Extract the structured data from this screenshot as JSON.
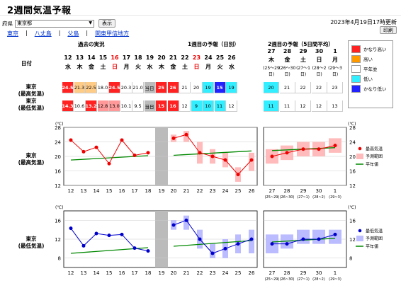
{
  "title": "2週間気温予報",
  "pref_label": "府県",
  "pref_value": "東京都",
  "show_button": "表示",
  "updated": "2023年4月19日17時更新",
  "print_button": "印刷",
  "links": [
    "東京",
    "八丈島",
    "父島",
    "関東甲信地方"
  ],
  "section_past": "過去の実況",
  "section_week1": "1週目の予報（日別）",
  "section_week2": "2週目の予報（5日間平均）",
  "date_label": "日付",
  "days": [
    {
      "d": "12",
      "w": "水",
      "color": "#000"
    },
    {
      "d": "13",
      "w": "木",
      "color": "#000"
    },
    {
      "d": "14",
      "w": "金",
      "color": "#000"
    },
    {
      "d": "15",
      "w": "土",
      "color": "#000"
    },
    {
      "d": "16",
      "w": "日",
      "color": "#e00"
    },
    {
      "d": "17",
      "w": "月",
      "color": "#000"
    },
    {
      "d": "18",
      "w": "火",
      "color": "#000"
    },
    {
      "d": "19",
      "w": "水",
      "color": "#000"
    },
    {
      "d": "20",
      "w": "木",
      "color": "#000"
    },
    {
      "d": "21",
      "w": "金",
      "color": "#000"
    },
    {
      "d": "22",
      "w": "土",
      "color": "#000"
    },
    {
      "d": "23",
      "w": "日",
      "color": "#e00"
    },
    {
      "d": "24",
      "w": "月",
      "color": "#000"
    },
    {
      "d": "25",
      "w": "火",
      "color": "#000"
    },
    {
      "d": "26",
      "w": "水",
      "color": "#000"
    }
  ],
  "week2_days": [
    {
      "d": "27",
      "w": "木",
      "r": "(25〜29日)"
    },
    {
      "d": "28",
      "w": "金",
      "r": "(26〜30日)"
    },
    {
      "d": "29",
      "w": "土",
      "r": "(27〜1日)"
    },
    {
      "d": "30",
      "w": "日",
      "r": "(28〜2日)"
    },
    {
      "d": "1",
      "w": "月",
      "r": "(29〜3日)"
    }
  ],
  "row_high_label": [
    "東京",
    "(最高気温)"
  ],
  "row_low_label": [
    "東京",
    "(最低気温)"
  ],
  "high_cells": [
    {
      "v": "24.5",
      "c": "#f22",
      "t": "#fff"
    },
    {
      "v": "21.3",
      "c": "#fc8",
      "t": "#000"
    },
    {
      "v": "22.5",
      "c": "#fc8",
      "t": "#000"
    },
    {
      "v": "18.0",
      "c": "#fff",
      "t": "#000"
    },
    {
      "v": "24.5",
      "c": "#f22",
      "t": "#fff"
    },
    {
      "v": "20.3",
      "c": "#fff",
      "t": "#000"
    },
    {
      "v": "21.0",
      "c": "#fff",
      "t": "#000"
    },
    {
      "v": "当日",
      "c": "#bbb",
      "t": "#000"
    },
    {
      "v": "25",
      "c": "#f22",
      "t": "#fff"
    },
    {
      "v": "26",
      "c": "#f22",
      "t": "#fff"
    },
    {
      "v": "21",
      "c": "#fff",
      "t": "#000"
    },
    {
      "v": "20",
      "c": "#fff",
      "t": "#000"
    },
    {
      "v": "19",
      "c": "#3ef",
      "t": "#000"
    },
    {
      "v": "15",
      "c": "#22f",
      "t": "#fff"
    },
    {
      "v": "19",
      "c": "#3ef",
      "t": "#000"
    }
  ],
  "low_cells": [
    {
      "v": "14.3",
      "c": "#f22",
      "t": "#fff"
    },
    {
      "v": "10.6",
      "c": "#fff",
      "t": "#000"
    },
    {
      "v": "13.2",
      "c": "#f22",
      "t": "#fff"
    },
    {
      "v": "12.8",
      "c": "#f99",
      "t": "#000"
    },
    {
      "v": "13.0",
      "c": "#f99",
      "t": "#000"
    },
    {
      "v": "10.1",
      "c": "#fff",
      "t": "#000"
    },
    {
      "v": "9.5",
      "c": "#fff",
      "t": "#000"
    },
    {
      "v": "当日",
      "c": "#bbb",
      "t": "#000"
    },
    {
      "v": "15",
      "c": "#f22",
      "t": "#fff"
    },
    {
      "v": "16",
      "c": "#f22",
      "t": "#fff"
    },
    {
      "v": "12",
      "c": "#fff",
      "t": "#000"
    },
    {
      "v": "9",
      "c": "#3ef",
      "t": "#000"
    },
    {
      "v": "10",
      "c": "#3ef",
      "t": "#000"
    },
    {
      "v": "11",
      "c": "#3ef",
      "t": "#000"
    },
    {
      "v": "12",
      "c": "#fff",
      "t": "#000"
    }
  ],
  "high_w2": [
    {
      "v": "20",
      "c": "#3ef"
    },
    {
      "v": "21",
      "c": "#fff"
    },
    {
      "v": "22",
      "c": "#fff"
    },
    {
      "v": "22",
      "c": "#fff"
    },
    {
      "v": "23",
      "c": "#fff"
    }
  ],
  "low_w2": [
    {
      "v": "11",
      "c": "#3ef"
    },
    {
      "v": "11",
      "c": "#fff"
    },
    {
      "v": "12",
      "c": "#fff"
    },
    {
      "v": "12",
      "c": "#fff"
    },
    {
      "v": "13",
      "c": "#fff"
    }
  ],
  "legend": [
    {
      "label": "かなり高い",
      "color": "#f22"
    },
    {
      "label": "高い",
      "color": "#f90"
    },
    {
      "label": "平年並",
      "color": "#fff"
    },
    {
      "label": "低い",
      "color": "#3ef"
    },
    {
      "label": "かなり低い",
      "color": "#22f"
    }
  ],
  "chart_data": [
    {
      "type": "line",
      "title": "東京（最高気温）",
      "unit": "(℃)",
      "ylim": [
        12,
        28
      ],
      "yticks": [
        12,
        16,
        20,
        24,
        28
      ],
      "past": {
        "x": [
          "12",
          "13",
          "14",
          "15",
          "16",
          "17",
          "18"
        ],
        "values": [
          24.5,
          21.3,
          22.5,
          18.0,
          24.5,
          20.3,
          21.0
        ],
        "normal": [
          19.0,
          19.2,
          19.4,
          19.6,
          19.8,
          20.0,
          20.2
        ]
      },
      "week1": {
        "x": [
          "20",
          "21",
          "22",
          "23",
          "24",
          "25",
          "26"
        ],
        "values": [
          25,
          26,
          21,
          20,
          19,
          15,
          19
        ],
        "range_low": [
          24,
          24,
          18,
          18,
          17,
          13,
          16
        ],
        "range_high": [
          26,
          27,
          24,
          22,
          21,
          17,
          21
        ],
        "normal": [
          20.3,
          20.5,
          20.7,
          20.9,
          21.1,
          21.3,
          21.5
        ]
      },
      "week2": {
        "x": [
          "27",
          "28",
          "29",
          "30",
          "1"
        ],
        "values": [
          20,
          21,
          22,
          22,
          23
        ],
        "range_low": [
          18,
          19,
          20,
          20,
          21
        ],
        "range_high": [
          22,
          23,
          24,
          24,
          25
        ],
        "normal": [
          21.6,
          21.8,
          22.0,
          22.2,
          22.4
        ]
      },
      "legend": [
        "最高気温",
        "予測範囲",
        "平年値"
      ]
    },
    {
      "type": "line",
      "title": "東京（最低気温）",
      "unit": "(℃)",
      "ylim": [
        6,
        18
      ],
      "yticks": [
        8,
        12,
        16
      ],
      "past": {
        "x": [
          "12",
          "13",
          "14",
          "15",
          "16",
          "17",
          "18"
        ],
        "values": [
          14.3,
          10.6,
          13.2,
          12.8,
          13.0,
          10.1,
          9.5
        ],
        "normal": [
          9.0,
          9.2,
          9.4,
          9.6,
          9.8,
          10.0,
          10.2
        ]
      },
      "week1": {
        "x": [
          "20",
          "21",
          "22",
          "23",
          "24",
          "25",
          "26"
        ],
        "values": [
          15,
          16,
          12,
          9,
          10,
          11,
          12
        ],
        "range_low": [
          14,
          14,
          10,
          8,
          8,
          9,
          9
        ],
        "range_high": [
          16,
          17,
          14,
          11,
          12,
          13,
          14
        ],
        "normal": [
          10.5,
          10.7,
          10.9,
          11.1,
          11.3,
          11.5,
          11.7
        ]
      },
      "week2": {
        "x": [
          "27",
          "28",
          "29",
          "30",
          "1"
        ],
        "values": [
          11,
          11,
          12,
          12,
          13
        ],
        "range_low": [
          9,
          10,
          11,
          11,
          11
        ],
        "range_high": [
          13,
          13,
          14,
          14,
          14
        ],
        "normal": [
          11.4,
          11.6,
          11.8,
          12.0,
          12.2
        ]
      },
      "legend": [
        "最低気温",
        "予測範囲",
        "平年値"
      ]
    }
  ],
  "x_bottom": [
    "12",
    "13",
    "14",
    "15",
    "16",
    "17",
    "18",
    "19",
    "20",
    "21",
    "22",
    "23",
    "24",
    "25",
    "26"
  ],
  "x2_bottom": [
    "27",
    "28",
    "29",
    "30",
    "1"
  ],
  "x2_sub": [
    "(25~29)",
    "(26~30)",
    "(27~1)",
    "(28~2)",
    "(29~3)"
  ]
}
